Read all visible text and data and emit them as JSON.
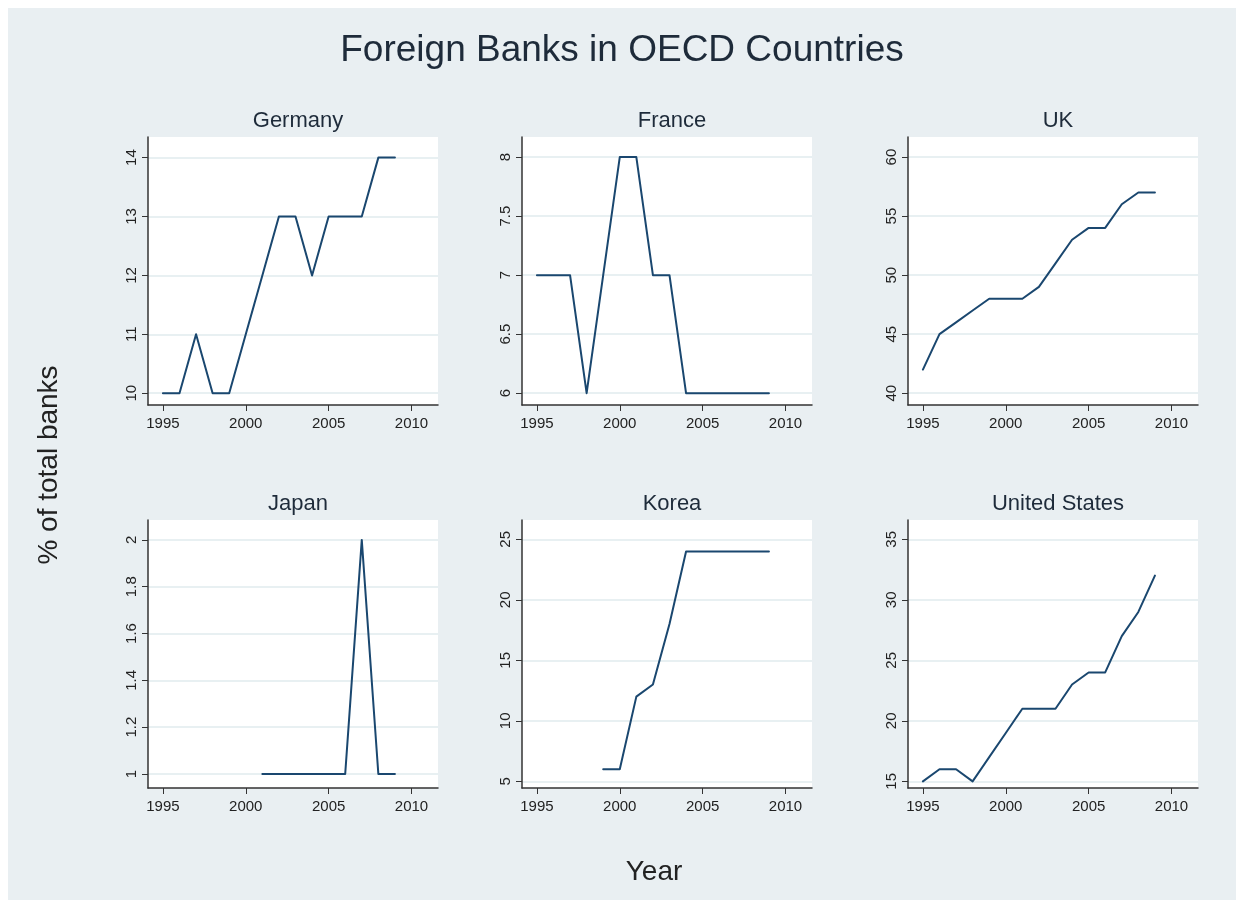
{
  "chart_data": [
    {
      "type": "line",
      "title": "Germany",
      "annotations": [
        "Foreign Banks in OECD Countries"
      ],
      "ylabel": "% of total banks",
      "x": [
        1995,
        1996,
        1997,
        1998,
        1999,
        2000,
        2001,
        2002,
        2003,
        2004,
        2005,
        2006,
        2007,
        2008,
        2009
      ],
      "series": [
        {
          "color": "#1a476f",
          "values": [
            10,
            10,
            11,
            10,
            10,
            11,
            12,
            13,
            13,
            12,
            13,
            13,
            13,
            14,
            14
          ]
        }
      ],
      "xlim": [
        1994.1,
        2011.6
      ],
      "xticks": [
        1995,
        2000,
        2005,
        2010
      ],
      "ylim": [
        9.8,
        14.35
      ],
      "yticks": [
        10,
        11,
        12,
        13,
        14
      ],
      "grid": "y",
      "marker": "none"
    },
    {
      "type": "line",
      "title": "France",
      "x": [
        1995,
        1996,
        1997,
        1998,
        1999,
        2000,
        2001,
        2002,
        2003,
        2004,
        2005,
        2006,
        2007,
        2008,
        2009
      ],
      "series": [
        {
          "color": "#1a476f",
          "values": [
            7,
            7,
            7,
            6,
            7,
            8,
            8,
            7,
            7,
            6,
            6,
            6,
            6,
            6,
            6
          ]
        }
      ],
      "xlim": [
        1994.1,
        2011.6
      ],
      "xticks": [
        1995,
        2000,
        2005,
        2010
      ],
      "ylim": [
        5.9,
        8.17
      ],
      "yticks": [
        6,
        6.5,
        7,
        7.5,
        8
      ],
      "grid": "y",
      "marker": "none"
    },
    {
      "type": "line",
      "title": "UK",
      "x": [
        1995,
        1996,
        1997,
        1998,
        1999,
        2000,
        2001,
        2002,
        2003,
        2004,
        2005,
        2006,
        2007,
        2008,
        2009
      ],
      "series": [
        {
          "color": "#1a476f",
          "values": [
            42,
            45,
            46,
            47,
            48,
            48,
            48,
            49,
            51,
            53,
            54,
            54,
            56,
            57,
            57
          ]
        }
      ],
      "xlim": [
        1994.1,
        2011.6
      ],
      "xticks": [
        1995,
        2000,
        2005,
        2010
      ],
      "ylim": [
        39,
        61.7
      ],
      "yticks": [
        40,
        45,
        50,
        55,
        60
      ],
      "grid": "y",
      "marker": "none"
    },
    {
      "type": "line",
      "title": "Japan",
      "x": [
        2001,
        2002,
        2003,
        2004,
        2005,
        2006,
        2007,
        2008,
        2009
      ],
      "series": [
        {
          "color": "#1a476f",
          "values": [
            1,
            1,
            1,
            1,
            1,
            1,
            2,
            1,
            1
          ]
        }
      ],
      "xlim": [
        1994.1,
        2011.6
      ],
      "xticks": [
        1995,
        2000,
        2005,
        2010
      ],
      "ylim": [
        0.94,
        2.085
      ],
      "yticks": [
        1,
        1.2,
        1.4,
        1.6,
        1.8,
        2
      ],
      "grid": "y",
      "marker": "none"
    },
    {
      "type": "line",
      "title": "Korea",
      "xlabel": "Year",
      "x": [
        1999,
        2000,
        2001,
        2002,
        2003,
        2004,
        2005,
        2006,
        2007,
        2008,
        2009
      ],
      "series": [
        {
          "color": "#1a476f",
          "values": [
            6,
            6,
            12,
            13,
            18,
            24,
            24,
            24,
            24,
            24,
            24
          ]
        }
      ],
      "xlim": [
        1994.1,
        2011.6
      ],
      "xticks": [
        1995,
        2000,
        2005,
        2010
      ],
      "ylim": [
        4.45,
        26.6
      ],
      "yticks": [
        5,
        10,
        15,
        20,
        25
      ],
      "grid": "y",
      "marker": "none"
    },
    {
      "type": "line",
      "title": "United States",
      "x": [
        1995,
        1996,
        1997,
        1998,
        1999,
        2000,
        2001,
        2002,
        2003,
        2004,
        2005,
        2006,
        2007,
        2008,
        2009
      ],
      "series": [
        {
          "color": "#1a476f",
          "values": [
            15,
            16,
            16,
            15,
            17,
            19,
            21,
            21,
            21,
            23,
            24,
            24,
            27,
            29,
            32
          ]
        }
      ],
      "xlim": [
        1994.1,
        2011.6
      ],
      "xticks": [
        1995,
        2000,
        2005,
        2010
      ],
      "ylim": [
        14.45,
        36.6
      ],
      "yticks": [
        15,
        20,
        25,
        30,
        35
      ],
      "grid": "y",
      "marker": "none"
    }
  ]
}
